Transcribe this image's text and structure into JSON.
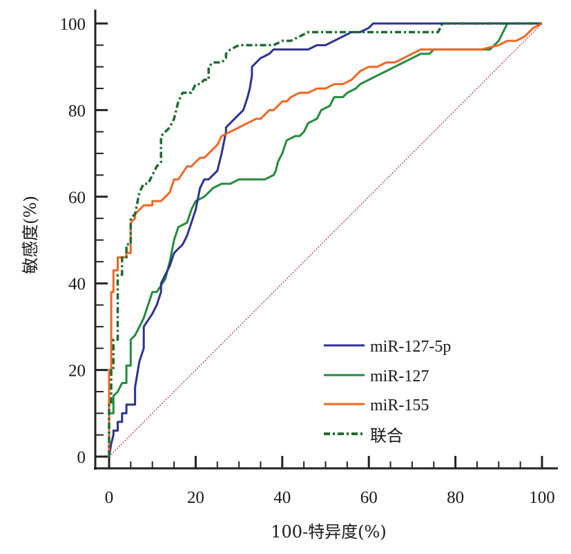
{
  "chart_data": {
    "type": "line",
    "title": "",
    "xlabel": "100-特异度(%)",
    "ylabel": "敏感度(%)",
    "xlim": [
      0,
      100
    ],
    "ylim": [
      0,
      100
    ],
    "x_ticks": [
      "0",
      "20",
      "40",
      "60",
      "80",
      "100"
    ],
    "y_ticks": [
      "0",
      "20",
      "40",
      "60",
      "80",
      "100"
    ],
    "grid": false,
    "legend_position": "bottom-right",
    "series": [
      {
        "name": "miR-127-5p",
        "color": "#2e3192",
        "style": "solid",
        "x": [
          0,
          0.5,
          1,
          1,
          2,
          2,
          3,
          3,
          4,
          4,
          6,
          6,
          7,
          8,
          8,
          10,
          11,
          12,
          12,
          14,
          15,
          16,
          17,
          18,
          20,
          21,
          22,
          23,
          25,
          26,
          27,
          27,
          28,
          29,
          31,
          32,
          32.5,
          33,
          33,
          35,
          37,
          38,
          40,
          44,
          46,
          48,
          50,
          52,
          54,
          56,
          58,
          60,
          61,
          62,
          70,
          80,
          90,
          100
        ],
        "y": [
          0,
          3,
          5,
          6,
          6,
          8,
          8,
          10,
          10,
          12,
          12,
          16,
          22,
          25,
          30,
          33,
          35,
          38,
          40,
          44,
          47,
          48,
          49,
          51,
          57,
          62,
          64,
          64,
          66,
          70,
          75,
          76,
          77,
          78,
          80,
          83,
          85,
          88,
          90,
          92,
          93,
          94,
          94,
          94,
          94,
          95,
          95,
          96,
          97,
          98,
          98,
          99,
          100,
          100,
          100,
          100,
          100,
          100
        ]
      },
      {
        "name": "miR-127",
        "color": "#228b3c",
        "style": "solid",
        "x": [
          0,
          0,
          1,
          1,
          2,
          3,
          4,
          4,
          5,
          5,
          6,
          7,
          8,
          9,
          10,
          11,
          13,
          14,
          15,
          16,
          18,
          19,
          20,
          22,
          24,
          26,
          28,
          30,
          32,
          34,
          36,
          38,
          38.5,
          39,
          40,
          41,
          43,
          44,
          45,
          46,
          48,
          49,
          51,
          52,
          54,
          55,
          57,
          58,
          60,
          62,
          64,
          66,
          68,
          70,
          72,
          74,
          75,
          80,
          88,
          90,
          90.5,
          91,
          92,
          100
        ],
        "y": [
          0,
          10,
          10,
          14,
          15,
          17,
          17,
          21,
          21,
          27,
          28,
          30,
          32,
          35,
          38,
          38,
          41,
          45,
          50,
          53,
          54,
          57,
          59,
          60,
          62,
          63,
          63,
          64,
          64,
          64,
          64,
          65,
          66,
          68,
          70,
          73,
          74,
          74,
          75,
          77,
          78,
          80,
          81,
          83,
          83,
          84,
          85,
          86,
          87,
          88,
          89,
          90,
          91,
          92,
          93,
          93,
          94,
          94,
          94,
          96,
          97,
          98,
          100,
          100
        ]
      },
      {
        "name": "miR-155",
        "color": "#f26522",
        "style": "solid",
        "x": [
          0,
          0,
          0.5,
          0.5,
          1,
          1,
          2,
          2,
          4,
          4,
          5,
          5,
          6,
          6,
          7,
          8,
          10,
          10,
          12,
          13,
          14,
          15,
          16,
          18,
          19,
          20,
          21,
          22,
          24,
          25,
          26,
          28,
          30,
          32,
          34,
          35,
          36,
          37,
          38,
          40,
          41,
          42,
          44,
          46,
          48,
          50,
          52,
          54,
          56,
          57,
          58,
          60,
          62,
          64,
          66,
          68,
          70,
          72,
          75,
          78,
          82,
          86,
          90,
          92,
          94,
          96,
          98,
          100
        ],
        "y": [
          0,
          20,
          20,
          38,
          38,
          43,
          43,
          46,
          46,
          47,
          47,
          54,
          55,
          56,
          57,
          58,
          58,
          59,
          59,
          60,
          61,
          64,
          64,
          67,
          67,
          68,
          69,
          69,
          71,
          72,
          74,
          75,
          76,
          77,
          78,
          78,
          79,
          80,
          80,
          82,
          82,
          83,
          84,
          84,
          85,
          85,
          86,
          86,
          87,
          88,
          89,
          90,
          90,
          91,
          91,
          92,
          93,
          94,
          94,
          94,
          94,
          94,
          95,
          96,
          96,
          97,
          99,
          100
        ]
      },
      {
        "name": "联合",
        "color": "#1e6b30",
        "style": "dashdot",
        "x": [
          0,
          0,
          0.5,
          0.5,
          1,
          1,
          2,
          2,
          3,
          3,
          4,
          4,
          5,
          5,
          6,
          7,
          8,
          9,
          10,
          11,
          12,
          12,
          13,
          14,
          15,
          16,
          17,
          18,
          19,
          20,
          21,
          22,
          23,
          23,
          24,
          26,
          27,
          27,
          28,
          30,
          31,
          32,
          35,
          38,
          40,
          42,
          44,
          46,
          48,
          50,
          55,
          60,
          62,
          65,
          70,
          76,
          77,
          80,
          90,
          100
        ],
        "y": [
          0,
          12,
          12,
          20,
          20,
          27,
          27,
          42,
          42,
          46,
          46,
          49,
          49,
          55,
          56,
          61,
          63,
          63,
          65,
          67,
          68,
          74,
          75,
          76,
          78,
          82,
          84,
          84,
          84,
          86,
          86,
          87,
          87,
          90,
          91,
          91,
          92,
          93,
          94,
          95,
          95,
          95,
          95,
          95,
          96,
          96,
          97,
          98,
          98,
          98,
          98,
          98,
          98,
          98,
          98,
          98,
          100,
          100,
          100,
          100
        ]
      },
      {
        "name": "reference",
        "color": "#b03a3a",
        "style": "dotted",
        "x": [
          0,
          100
        ],
        "y": [
          0,
          100
        ]
      }
    ],
    "legend": [
      "miR-127-5p",
      "miR-127",
      "miR-155",
      "联合"
    ]
  }
}
